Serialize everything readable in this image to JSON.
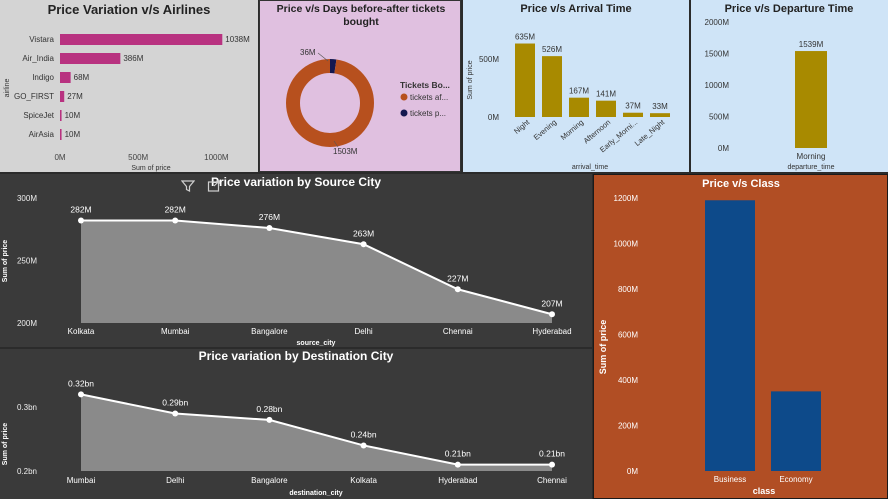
{
  "chart_data": [
    {
      "id": "airlines",
      "type": "bar",
      "orientation": "horizontal",
      "title": "Price Variation v/s Airlines",
      "xlabel": "Sum of price",
      "ylabel": "airline",
      "categories": [
        "Vistara",
        "Air_India",
        "Indigo",
        "GO_FIRST",
        "SpiceJet",
        "AirAsia"
      ],
      "values": [
        1038,
        386,
        68,
        27,
        10,
        10
      ],
      "value_labels": [
        "1038M",
        "386M",
        "68M",
        "27M",
        "10M",
        "10M"
      ],
      "xlim": [
        0,
        1100
      ],
      "ticks": [
        0,
        500,
        1000
      ],
      "tick_labels": [
        "0M",
        "500M",
        "1000M"
      ],
      "bar_color": "#b83280",
      "background": "#d4d4d4"
    },
    {
      "id": "days",
      "type": "pie",
      "donut": true,
      "title": "Price v/s Days before-after tickets bought",
      "legend_title": "Tickets Bo...",
      "labels": [
        "tickets af...",
        "tickets p..."
      ],
      "values": [
        1503,
        36
      ],
      "value_labels": [
        "1503M",
        "36M"
      ],
      "colors": [
        "#b7501e",
        "#141850"
      ],
      "legend_position": "right",
      "background": "#e0c0e0"
    },
    {
      "id": "arrival",
      "type": "bar",
      "title": "Price v/s Arrival Time",
      "xlabel": "arrival_time",
      "ylabel": "Sum of price",
      "categories": [
        "Night",
        "Evening",
        "Morning",
        "Afternoon",
        "Early_Morni...",
        "Late_Night"
      ],
      "values": [
        635,
        526,
        167,
        141,
        37,
        33
      ],
      "value_labels": [
        "635M",
        "526M",
        "167M",
        "141M",
        "37M",
        "33M"
      ],
      "ylim": [
        0,
        700
      ],
      "ticks": [
        0,
        500
      ],
      "tick_labels": [
        "0M",
        "500M"
      ],
      "bar_color": "#a88a00",
      "background": "#cfe4f7"
    },
    {
      "id": "departure",
      "type": "bar",
      "title": "Price v/s Departure Time",
      "xlabel": "departure_time",
      "ylabel": "",
      "categories": [
        "Morning"
      ],
      "values": [
        1539
      ],
      "value_labels": [
        "1539M"
      ],
      "ylim": [
        0,
        2000
      ],
      "ticks": [
        0,
        500,
        1000,
        1500,
        2000
      ],
      "tick_labels": [
        "0M",
        "500M",
        "1000M",
        "1500M",
        "2000M"
      ],
      "bar_color": "#a88a00",
      "background": "#cfe4f7"
    },
    {
      "id": "source",
      "type": "area",
      "title": "Price variation by Source City",
      "xlabel": "source_city",
      "ylabel": "Sum of price",
      "categories": [
        "Kolkata",
        "Mumbai",
        "Bangalore",
        "Delhi",
        "Chennai",
        "Hyderabad"
      ],
      "values": [
        282,
        282,
        276,
        263,
        227,
        207
      ],
      "value_labels": [
        "282M",
        "282M",
        "276M",
        "263M",
        "227M",
        "207M"
      ],
      "ylim": [
        200,
        300
      ],
      "ticks": [
        200,
        250,
        300
      ],
      "tick_labels": [
        "200M",
        "250M",
        "300M"
      ],
      "background": "#3a3a3a"
    },
    {
      "id": "destination",
      "type": "area",
      "title": "Price variation by Destination City",
      "xlabel": "destination_city",
      "ylabel": "Sum of price",
      "categories": [
        "Mumbai",
        "Delhi",
        "Bangalore",
        "Kolkata",
        "Hyderabad",
        "Chennai"
      ],
      "values": [
        0.32,
        0.29,
        0.28,
        0.24,
        0.21,
        0.21
      ],
      "value_labels": [
        "0.32bn",
        "0.29bn",
        "0.28bn",
        "0.24bn",
        "0.21bn",
        "0.21bn"
      ],
      "ylim": [
        0.2,
        0.33
      ],
      "ticks": [
        0.2,
        0.3
      ],
      "tick_labels": [
        "0.2bn",
        "0.3bn"
      ],
      "background": "#3a3a3a"
    },
    {
      "id": "class",
      "type": "bar",
      "title": "Price v/s Class",
      "xlabel": "class",
      "ylabel": "Sum of price",
      "categories": [
        "Business",
        "Economy"
      ],
      "values": [
        1190,
        350
      ],
      "ylim": [
        0,
        1200
      ],
      "ticks": [
        0,
        200,
        400,
        600,
        800,
        1000,
        1200
      ],
      "tick_labels": [
        "0M",
        "200M",
        "400M",
        "600M",
        "800M",
        "1000M",
        "1200M"
      ],
      "bar_color": "#0d4a8a",
      "background": "#b14e24"
    }
  ],
  "toolbar": {
    "filter_icon": "filter-icon",
    "focus_icon": "focus-mode-icon"
  }
}
